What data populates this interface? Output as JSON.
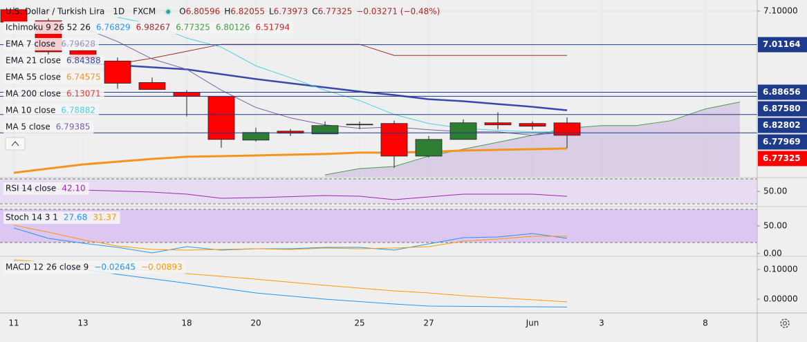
{
  "chart_data": [
    {
      "type": "candlestick",
      "title": "U.S. Dollar / Turkish Lira",
      "interval": "1D",
      "source": "FXCM",
      "ohlc_prefixes": [
        "O",
        "H",
        "L",
        "C"
      ],
      "ohlc_color": "#a52a2a",
      "change": "−0.03271 (−0.48%)",
      "categories": [
        "11",
        null,
        "13",
        null,
        null,
        "18",
        null,
        "20",
        null,
        null,
        "25",
        null,
        "27",
        null,
        null,
        "Jun",
        null,
        "3",
        null,
        null,
        "8",
        null
      ],
      "open": [
        7.1037,
        7.0744,
        6.9964,
        6.9686,
        6.912,
        6.8865,
        6.8755,
        6.7606,
        6.7843,
        6.777,
        6.8007,
        6.8044,
        6.7186,
        6.7624,
        6.8062,
        6.8044,
        6.80596,
        null,
        null,
        null,
        null,
        null
      ],
      "high": [
        7.11,
        7.08,
        7.0,
        6.978,
        6.925,
        6.892,
        6.8755,
        6.7934,
        6.7898,
        6.8099,
        6.8099,
        6.8117,
        6.7715,
        6.8153,
        6.8336,
        6.8099,
        6.82055,
        null,
        null,
        null,
        null,
        null
      ],
      "low": [
        7.065,
        6.985,
        6.97,
        6.8956,
        6.8938,
        6.8226,
        6.7405,
        6.7569,
        6.7715,
        6.777,
        6.7898,
        6.6876,
        6.715,
        6.7624,
        6.789,
        6.788,
        6.73973,
        null,
        null,
        null,
        null,
        null
      ],
      "close": [
        7.0708,
        6.9927,
        6.9745,
        6.9102,
        6.8938,
        6.8755,
        6.7624,
        6.7807,
        6.7788,
        6.7989,
        6.8025,
        6.7186,
        6.7624,
        6.8062,
        6.8007,
        6.7971,
        6.77325,
        null,
        null,
        null,
        null,
        null
      ],
      "up_color": "#2e7d32",
      "down_color": "#ff0000",
      "ylim": [
        6.664,
        7.129
      ],
      "yticks": [
        {
          "value": 7.1,
          "label": "7.10000"
        }
      ],
      "grid": true,
      "overlays": [
        {
          "name": "Ichimoku 9 26 52 26",
          "legend_values": [
            "6.76829",
            "6.98267",
            "6.77325",
            "6.80126",
            "6.51794"
          ],
          "legend_colors": [
            "#2196f3",
            "#a52a2a",
            "#43a047",
            "#43a047",
            "#c62828"
          ],
          "lines": [
            {
              "color": "#a52a2a",
              "width": 1,
              "values": [
                null,
                null,
                null,
                6.9613,
                6.9759,
                6.9942,
                7.0124,
                7.0124,
                7.0124,
                7.0124,
                7.0124,
                6.9832,
                6.9832,
                6.9832,
                6.9832,
                6.9832,
                6.9832,
                null,
                null,
                null,
                null,
                null
              ]
            },
            {
              "color": "#43a047",
              "width": 1,
              "fill": "#c9b3e0",
              "values": [
                null,
                null,
                null,
                null,
                null,
                null,
                null,
                null,
                null,
                6.6693,
                6.6858,
                6.6912,
                6.7186,
                6.7369,
                6.7551,
                6.7734,
                6.7916,
                6.7989,
                6.7989,
                6.8117,
                6.8427,
                6.8609
              ]
            }
          ]
        },
        {
          "name": "EMA 7 close",
          "legend_values": [
            "6.79628"
          ],
          "legend_colors": [
            "#8a9bb8"
          ],
          "lines": []
        },
        {
          "name": "EMA 21 close",
          "legend_values": [
            "6.84388"
          ],
          "legend_colors": [
            "#3949ab"
          ],
          "lines": [
            {
              "color": "#3949ab",
              "width": 2.5,
              "values": [
                null,
                null,
                6.9631,
                6.9577,
                6.9522,
                6.9467,
                6.9339,
                6.9212,
                6.9102,
                6.8993,
                6.8883,
                6.8792,
                6.8682,
                6.8628,
                6.8555,
                6.8482,
                6.8391,
                null,
                null,
                null,
                null,
                null
              ]
            }
          ]
        },
        {
          "name": "EMA 55 close",
          "legend_values": [
            "6.74575"
          ],
          "legend_colors": [
            "#f7931a"
          ],
          "lines": [
            {
              "color": "#f7931a",
              "width": 3,
              "values": [
                6.6748,
                6.6858,
                6.6967,
                6.704,
                6.7113,
                6.7168,
                6.7186,
                6.7204,
                6.7223,
                6.7241,
                6.7277,
                6.7277,
                6.7296,
                6.7332,
                6.735,
                6.7369,
                6.7387,
                null,
                null,
                null,
                null,
                null
              ]
            }
          ]
        },
        {
          "name": "MA 200 close",
          "legend_values": [
            "6.13071"
          ],
          "legend_colors": [
            "#e53935"
          ],
          "lines": []
        },
        {
          "name": "MA 10 close",
          "legend_values": [
            "6.78882"
          ],
          "legend_colors": [
            "#4dd0e1"
          ],
          "lines": [
            {
              "color": "#4dd0e1",
              "width": 1,
              "values": [
                null,
                null,
                null,
                7.0836,
                7.0653,
                7.0288,
                7.0051,
                6.9558,
                6.9248,
                6.892,
                6.8646,
                6.8281,
                6.8044,
                6.7916,
                6.7861,
                6.7825,
                6.7825,
                null,
                null,
                null,
                null,
                null
              ]
            }
          ]
        },
        {
          "name": "MA 5 close",
          "legend_values": [
            "6.79385"
          ],
          "legend_colors": [
            "#7b5ea7"
          ],
          "lines": [
            {
              "color": "#7b5ea7",
              "width": 1,
              "values": [
                null,
                null,
                7.0562,
                7.0197,
                6.9741,
                6.9467,
                6.892,
                6.8464,
                6.819,
                6.8007,
                6.7916,
                6.7953,
                6.788,
                6.7825,
                6.7825,
                6.7734,
                6.7825,
                null,
                null,
                null,
                null,
                null
              ]
            }
          ]
        }
      ],
      "price_labels": [
        {
          "value": 7.01164,
          "label": "7.01164",
          "color": "#1e3a8a",
          "line": true
        },
        {
          "value": 6.88656,
          "label": "6.88656",
          "color": "#1e3a8a",
          "line": true
        },
        {
          "value": 6.8758,
          "label": "6.87580",
          "color": "#1e3a8a",
          "line": true
        },
        {
          "value": 6.82802,
          "label": "6.82802",
          "color": "#1e3a8a",
          "line": true
        },
        {
          "value": 6.77969,
          "label": "6.77969",
          "color": "#1e3a8a",
          "line": true
        },
        {
          "value": 6.77325,
          "label": "6.77325",
          "color": "#ff0000",
          "line": false
        }
      ]
    },
    {
      "type": "line",
      "title": "RSI 14 close",
      "ylim": [
        26.7,
        71.1
      ],
      "yticks": [
        {
          "value": 50,
          "label": "50.00"
        }
      ],
      "bands": [
        70,
        30
      ],
      "band_fill": "#e8dcf2",
      "series": [
        {
          "color": "#9c27b0",
          "last_label": "42.10",
          "values": [
            55.6,
            54,
            52.2,
            50.5,
            48.9,
            45.6,
            38.9,
            40,
            41.5,
            43.3,
            42.2,
            36.7,
            41.1,
            45.6,
            45.6,
            45.6,
            42.1,
            null,
            null,
            null,
            null,
            null
          ]
        }
      ]
    },
    {
      "type": "line",
      "title": "Stoch 14 3 1",
      "ylim": [
        -3.75,
        83.75
      ],
      "yticks": [
        {
          "value": 50,
          "label": "50.00"
        },
        {
          "value": 0,
          "label": "0.00"
        }
      ],
      "bands": [
        80,
        20
      ],
      "band_fill": "#dcc6f2",
      "series": [
        {
          "color": "#2196f3",
          "last_label": "27.68",
          "values": [
            46.25,
            27.5,
            18.75,
            11.25,
            1.25,
            12.5,
            6.25,
            8.75,
            8.75,
            11.25,
            11.25,
            6.25,
            17.5,
            28.75,
            30,
            36.25,
            27.68,
            null,
            null,
            null,
            null,
            null
          ]
        },
        {
          "color": "#ff9800",
          "last_label": "31.37",
          "values": [
            51.25,
            38.75,
            25,
            13.75,
            7.5,
            6.25,
            7.5,
            8.75,
            7.5,
            10,
            8.75,
            10,
            12.5,
            22.5,
            26.25,
            31.25,
            31.37,
            null,
            null,
            null,
            null,
            null
          ]
        }
      ]
    },
    {
      "type": "line",
      "title": "MACD 12 26 close 9",
      "ylim": [
        -0.0442,
        0.1419
      ],
      "yticks": [
        {
          "value": 0.1,
          "label": "0.10000"
        },
        {
          "value": 0,
          "label": "0.00000"
        }
      ],
      "series": [
        {
          "color": "#2196f3",
          "last_label": "−0.02645",
          "values": [
            0.1279,
            0.114,
            0.1,
            0.0837,
            0.0686,
            0.0535,
            0.0372,
            0.0209,
            0.0105,
            0,
            -0.0081,
            -0.0163,
            -0.0233,
            -0.024,
            -0.025,
            -0.0257,
            -0.02645,
            null,
            null,
            null,
            null,
            null
          ]
        },
        {
          "color": "#ff9800",
          "last_label": "−0.00893",
          "values": [
            0.1326,
            0.1233,
            0.114,
            0.1047,
            0.0953,
            0.086,
            0.0767,
            0.0674,
            0.057,
            0.0465,
            0.0372,
            0.0279,
            0.0209,
            0.0116,
            0.0047,
            -0.0021,
            -0.00893,
            null,
            null,
            null,
            null,
            null
          ]
        }
      ]
    }
  ]
}
